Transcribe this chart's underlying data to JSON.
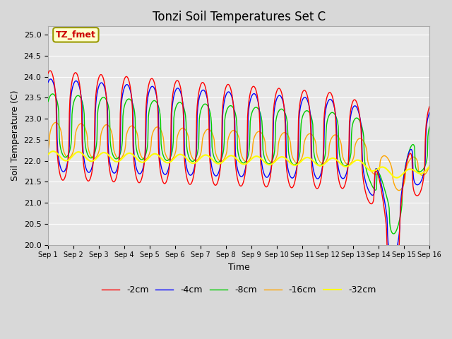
{
  "title": "Tonzi Soil Temperatures Set C",
  "xlabel": "Time",
  "ylabel": "Soil Temperature (C)",
  "ylim": [
    20.0,
    25.2
  ],
  "yticks": [
    20.0,
    20.5,
    21.0,
    21.5,
    22.0,
    22.5,
    23.0,
    23.5,
    24.0,
    24.5,
    25.0
  ],
  "xtick_labels": [
    "Sep 1",
    "Sep 2",
    "Sep 3",
    "Sep 4",
    "Sep 5",
    "Sep 6",
    "Sep 7",
    "Sep 8",
    "Sep 9",
    "Sep 10",
    "Sep 11",
    "Sep 12",
    "Sep 13",
    "Sep 14",
    "Sep 15",
    "Sep 16"
  ],
  "colors": {
    "-2cm": "#ff0000",
    "-4cm": "#0000ff",
    "-8cm": "#00cc00",
    "-16cm": "#ffa500",
    "-32cm": "#ffff00"
  },
  "annotation_text": "TZ_fmet",
  "annotation_bbox_fc": "#ffffcc",
  "annotation_bbox_ec": "#999900",
  "fig_bg": "#d8d8d8",
  "plot_bg": "#e8e8e8",
  "title_fontsize": 12,
  "axis_fontsize": 9,
  "tick_fontsize": 8
}
